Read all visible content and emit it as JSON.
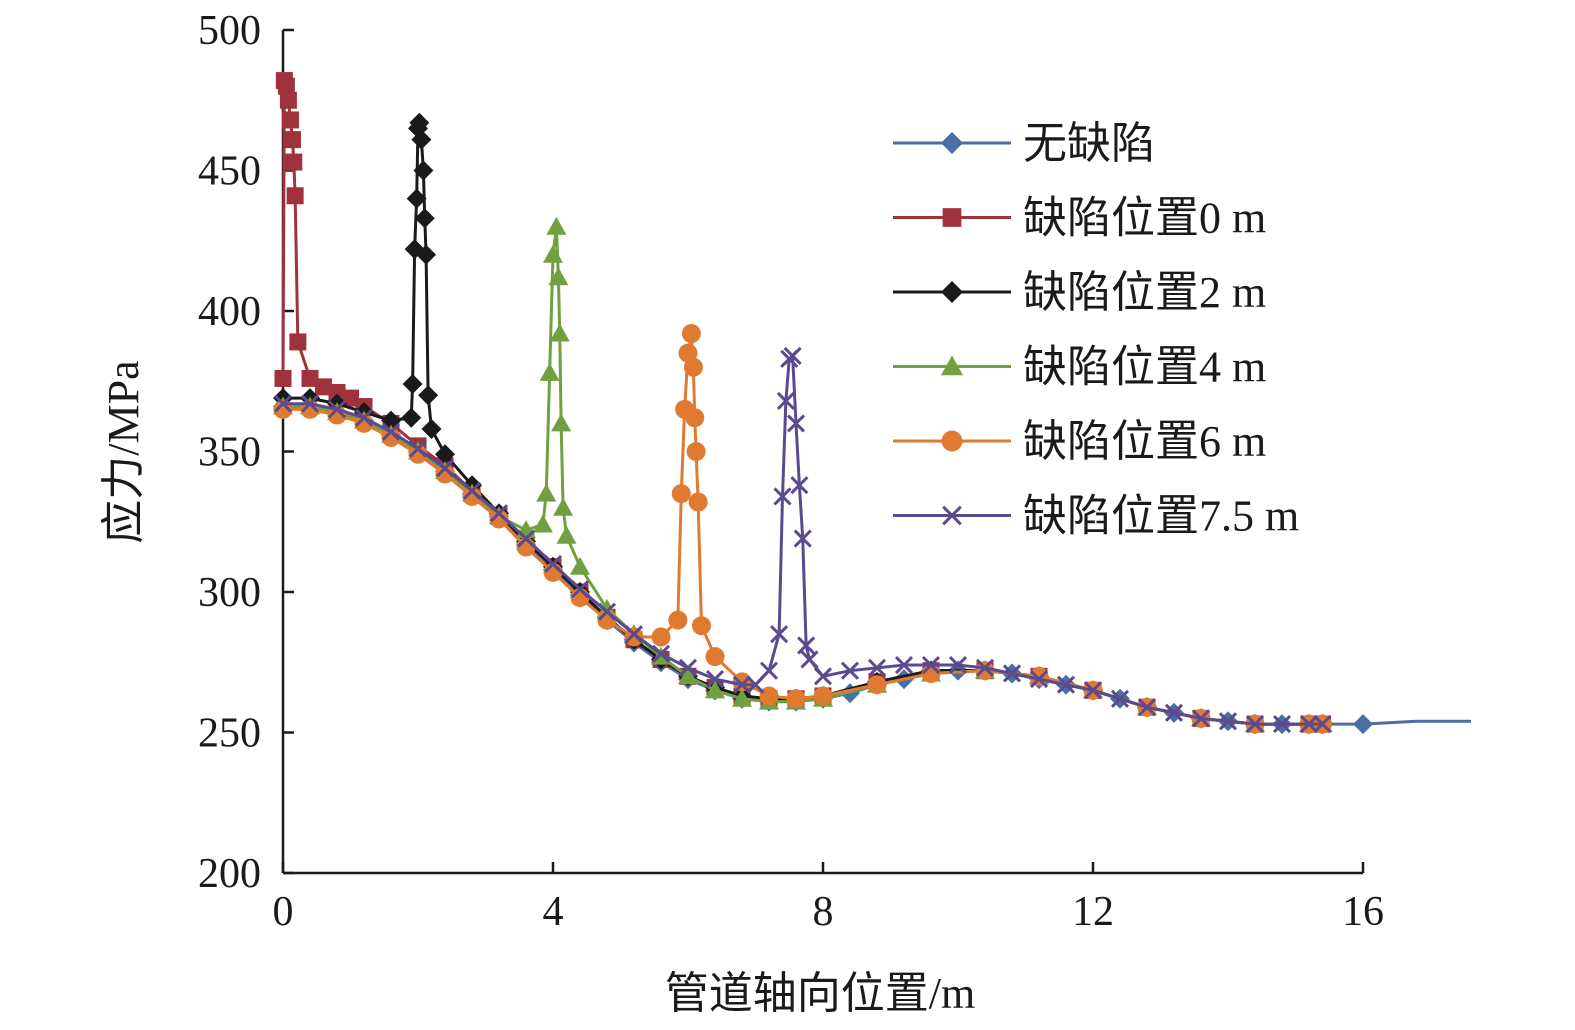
{
  "chart_data": {
    "type": "line",
    "title": "",
    "xlabel": "管道轴向位置/m",
    "ylabel": "应力/MPa",
    "xlim": [
      0,
      16
    ],
    "ylim": [
      200,
      500
    ],
    "xticks": [
      0,
      4,
      8,
      12,
      16
    ],
    "yticks": [
      200,
      250,
      300,
      350,
      400,
      450,
      500
    ],
    "grid": false,
    "legend_position": "top-right",
    "series": [
      {
        "name": "无缺陷",
        "color": "#4a6fa5",
        "marker": "diamond",
        "x": [
          0,
          0.4,
          0.8,
          1.2,
          1.6,
          2.0,
          2.4,
          2.8,
          3.2,
          3.6,
          4.0,
          4.4,
          4.8,
          5.2,
          5.6,
          6.0,
          6.4,
          6.8,
          7.2,
          7.6,
          8.0,
          8.4,
          8.8,
          9.2,
          9.6,
          10.0,
          10.4,
          10.8,
          11.2,
          11.6,
          12.0,
          12.4,
          12.8,
          13.2,
          13.6,
          14.0,
          14.4,
          14.8,
          15.2,
          15.4,
          16.0,
          16.8,
          17.6
        ],
        "y": [
          366,
          366,
          364,
          361,
          356,
          350,
          343,
          335,
          327,
          317,
          308,
          299,
          290,
          282,
          275,
          269,
          265,
          262,
          261,
          261,
          262,
          264,
          267,
          269,
          271,
          272,
          272,
          271,
          269,
          267,
          265,
          262,
          259,
          257,
          255,
          254,
          253,
          253,
          253,
          253,
          253,
          254,
          254
        ]
      },
      {
        "name": "缺陷位置0 m",
        "color": "#a0323d",
        "marker": "square",
        "x": [
          0,
          0.02,
          0.05,
          0.08,
          0.11,
          0.14,
          0.16,
          0.18,
          0.22,
          0.4,
          0.6,
          0.8,
          1.0,
          1.2,
          1.6,
          2.0,
          2.4,
          2.8,
          3.2,
          3.6,
          4.0,
          4.4,
          4.8,
          5.2,
          5.6,
          6.0,
          6.4,
          6.8,
          7.2,
          7.6,
          8.0,
          8.8,
          9.6,
          10.4,
          11.2,
          12.0,
          12.8,
          13.6,
          14.4,
          15.2,
          15.4
        ],
        "y": [
          376,
          482,
          480,
          475,
          468,
          461,
          453,
          441,
          389,
          376,
          373,
          371,
          369,
          366,
          360,
          352,
          345,
          336,
          327,
          318,
          309,
          300,
          291,
          283,
          276,
          270,
          266,
          263,
          262,
          262,
          263,
          268,
          272,
          272,
          270,
          265,
          259,
          255,
          253,
          253,
          253
        ]
      },
      {
        "name": "缺陷位置2 m",
        "color": "#1a1a1a",
        "marker": "diamond",
        "x": [
          0,
          0.4,
          0.8,
          1.2,
          1.6,
          1.9,
          1.92,
          1.95,
          1.98,
          2.0,
          2.02,
          2.05,
          2.08,
          2.1,
          2.12,
          2.15,
          2.2,
          2.4,
          2.8,
          3.2,
          3.6,
          4.0,
          4.4,
          4.8,
          5.2,
          5.6,
          6.0,
          6.4,
          6.8,
          7.2,
          7.6,
          8.0,
          8.8,
          9.6,
          10.4,
          11.2,
          12.0,
          12.8,
          13.6,
          14.4,
          15.2,
          15.4
        ],
        "y": [
          369,
          369,
          367,
          364,
          361,
          362,
          374,
          422,
          440,
          465,
          467,
          461,
          450,
          433,
          420,
          370,
          358,
          349,
          338,
          328,
          318,
          309,
          300,
          291,
          283,
          276,
          270,
          266,
          263,
          262,
          262,
          263,
          268,
          272,
          272,
          270,
          265,
          259,
          255,
          253,
          253,
          253
        ]
      },
      {
        "name": "缺陷位置4 m",
        "color": "#70a040",
        "marker": "triangle",
        "x": [
          0,
          0.4,
          0.8,
          1.2,
          1.6,
          2.0,
          2.4,
          2.8,
          3.2,
          3.6,
          3.85,
          3.9,
          3.95,
          4.0,
          4.05,
          4.08,
          4.1,
          4.12,
          4.15,
          4.2,
          4.4,
          4.8,
          5.2,
          5.6,
          6.0,
          6.4,
          6.8,
          7.2,
          7.6,
          8.0,
          8.8,
          9.6,
          10.4,
          11.2,
          12.0,
          12.8,
          13.6,
          14.4,
          15.2,
          15.4
        ],
        "y": [
          366,
          366,
          364,
          361,
          356,
          350,
          343,
          335,
          327,
          322,
          324,
          335,
          378,
          420,
          430,
          412,
          392,
          360,
          330,
          320,
          309,
          294,
          285,
          277,
          270,
          265,
          262,
          261,
          261,
          262,
          267,
          271,
          272,
          270,
          265,
          259,
          255,
          253,
          253,
          253
        ]
      },
      {
        "name": "缺陷位置6 m",
        "color": "#e07a30",
        "marker": "circle",
        "x": [
          0,
          0.4,
          0.8,
          1.2,
          1.6,
          2.0,
          2.4,
          2.8,
          3.2,
          3.6,
          4.0,
          4.4,
          4.8,
          5.2,
          5.6,
          5.85,
          5.9,
          5.95,
          6.0,
          6.05,
          6.08,
          6.1,
          6.12,
          6.15,
          6.2,
          6.4,
          6.8,
          7.2,
          7.6,
          8.0,
          8.8,
          9.6,
          10.4,
          11.2,
          12.0,
          12.8,
          13.6,
          14.4,
          15.2,
          15.4
        ],
        "y": [
          365,
          365,
          363,
          360,
          355,
          349,
          342,
          334,
          326,
          316,
          307,
          298,
          290,
          284,
          284,
          290,
          335,
          365,
          385,
          392,
          380,
          362,
          350,
          332,
          288,
          277,
          268,
          263,
          262,
          263,
          267,
          271,
          272,
          270,
          265,
          259,
          255,
          253,
          253,
          253
        ]
      },
      {
        "name": "缺陷位置7.5 m",
        "color": "#5c4a8f",
        "marker": "x",
        "x": [
          0,
          0.4,
          0.8,
          1.2,
          1.6,
          2.0,
          2.4,
          2.8,
          3.2,
          3.6,
          4.0,
          4.4,
          4.8,
          5.2,
          5.6,
          6.0,
          6.4,
          6.8,
          7.0,
          7.2,
          7.35,
          7.4,
          7.45,
          7.5,
          7.55,
          7.6,
          7.65,
          7.7,
          7.75,
          7.8,
          8.0,
          8.4,
          8.8,
          9.2,
          9.6,
          10.0,
          10.4,
          10.8,
          11.2,
          11.6,
          12.0,
          12.4,
          12.8,
          13.2,
          13.6,
          14.0,
          14.4,
          14.8,
          15.2,
          15.4
        ],
        "y": [
          367,
          367,
          365,
          362,
          357,
          351,
          344,
          336,
          328,
          319,
          310,
          301,
          293,
          285,
          278,
          273,
          269,
          267,
          267,
          272,
          285,
          334,
          368,
          383,
          384,
          360,
          338,
          319,
          281,
          276,
          270,
          272,
          273,
          274,
          274,
          274,
          273,
          271,
          269,
          267,
          265,
          262,
          259,
          257,
          255,
          254,
          253,
          253,
          253,
          253
        ]
      }
    ]
  }
}
